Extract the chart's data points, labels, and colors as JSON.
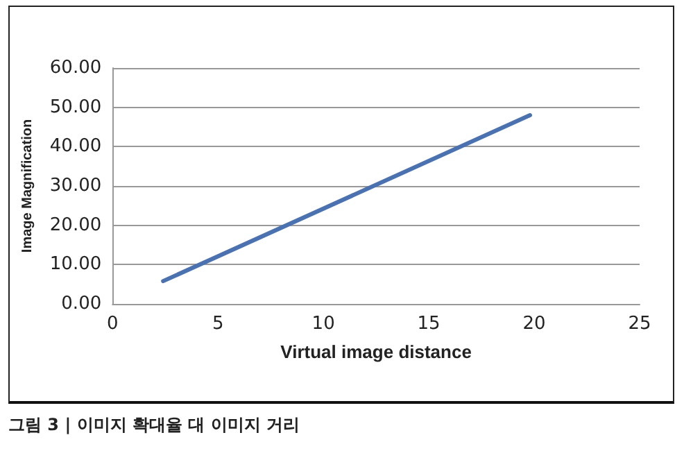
{
  "chart_data": {
    "type": "line",
    "xlabel": "Virtual image distance",
    "ylabel": "Image Magnification",
    "annotations": [
      "그림 3 | 이미지 확대율 대 이미지 거리"
    ],
    "x": [
      2.4,
      19.8
    ],
    "series": [
      {
        "color": "#4a72b0",
        "values": [
          5.8,
          48
        ]
      }
    ],
    "xlim": [
      0,
      25
    ],
    "xticks": [
      0,
      5,
      10,
      15,
      20,
      25
    ],
    "ylim": [
      0,
      60
    ],
    "yticks": [
      {
        "value": 0,
        "label": "0.00"
      },
      {
        "value": 10,
        "label": "10.00"
      },
      {
        "value": 20,
        "label": "20.00"
      },
      {
        "value": 30,
        "label": "30.00"
      },
      {
        "value": 40,
        "label": "40.00"
      },
      {
        "value": 50,
        "label": "50.00"
      },
      {
        "value": 60,
        "label": "60.00"
      }
    ],
    "grid": "y",
    "marker": "none",
    "line_style": "solid"
  }
}
